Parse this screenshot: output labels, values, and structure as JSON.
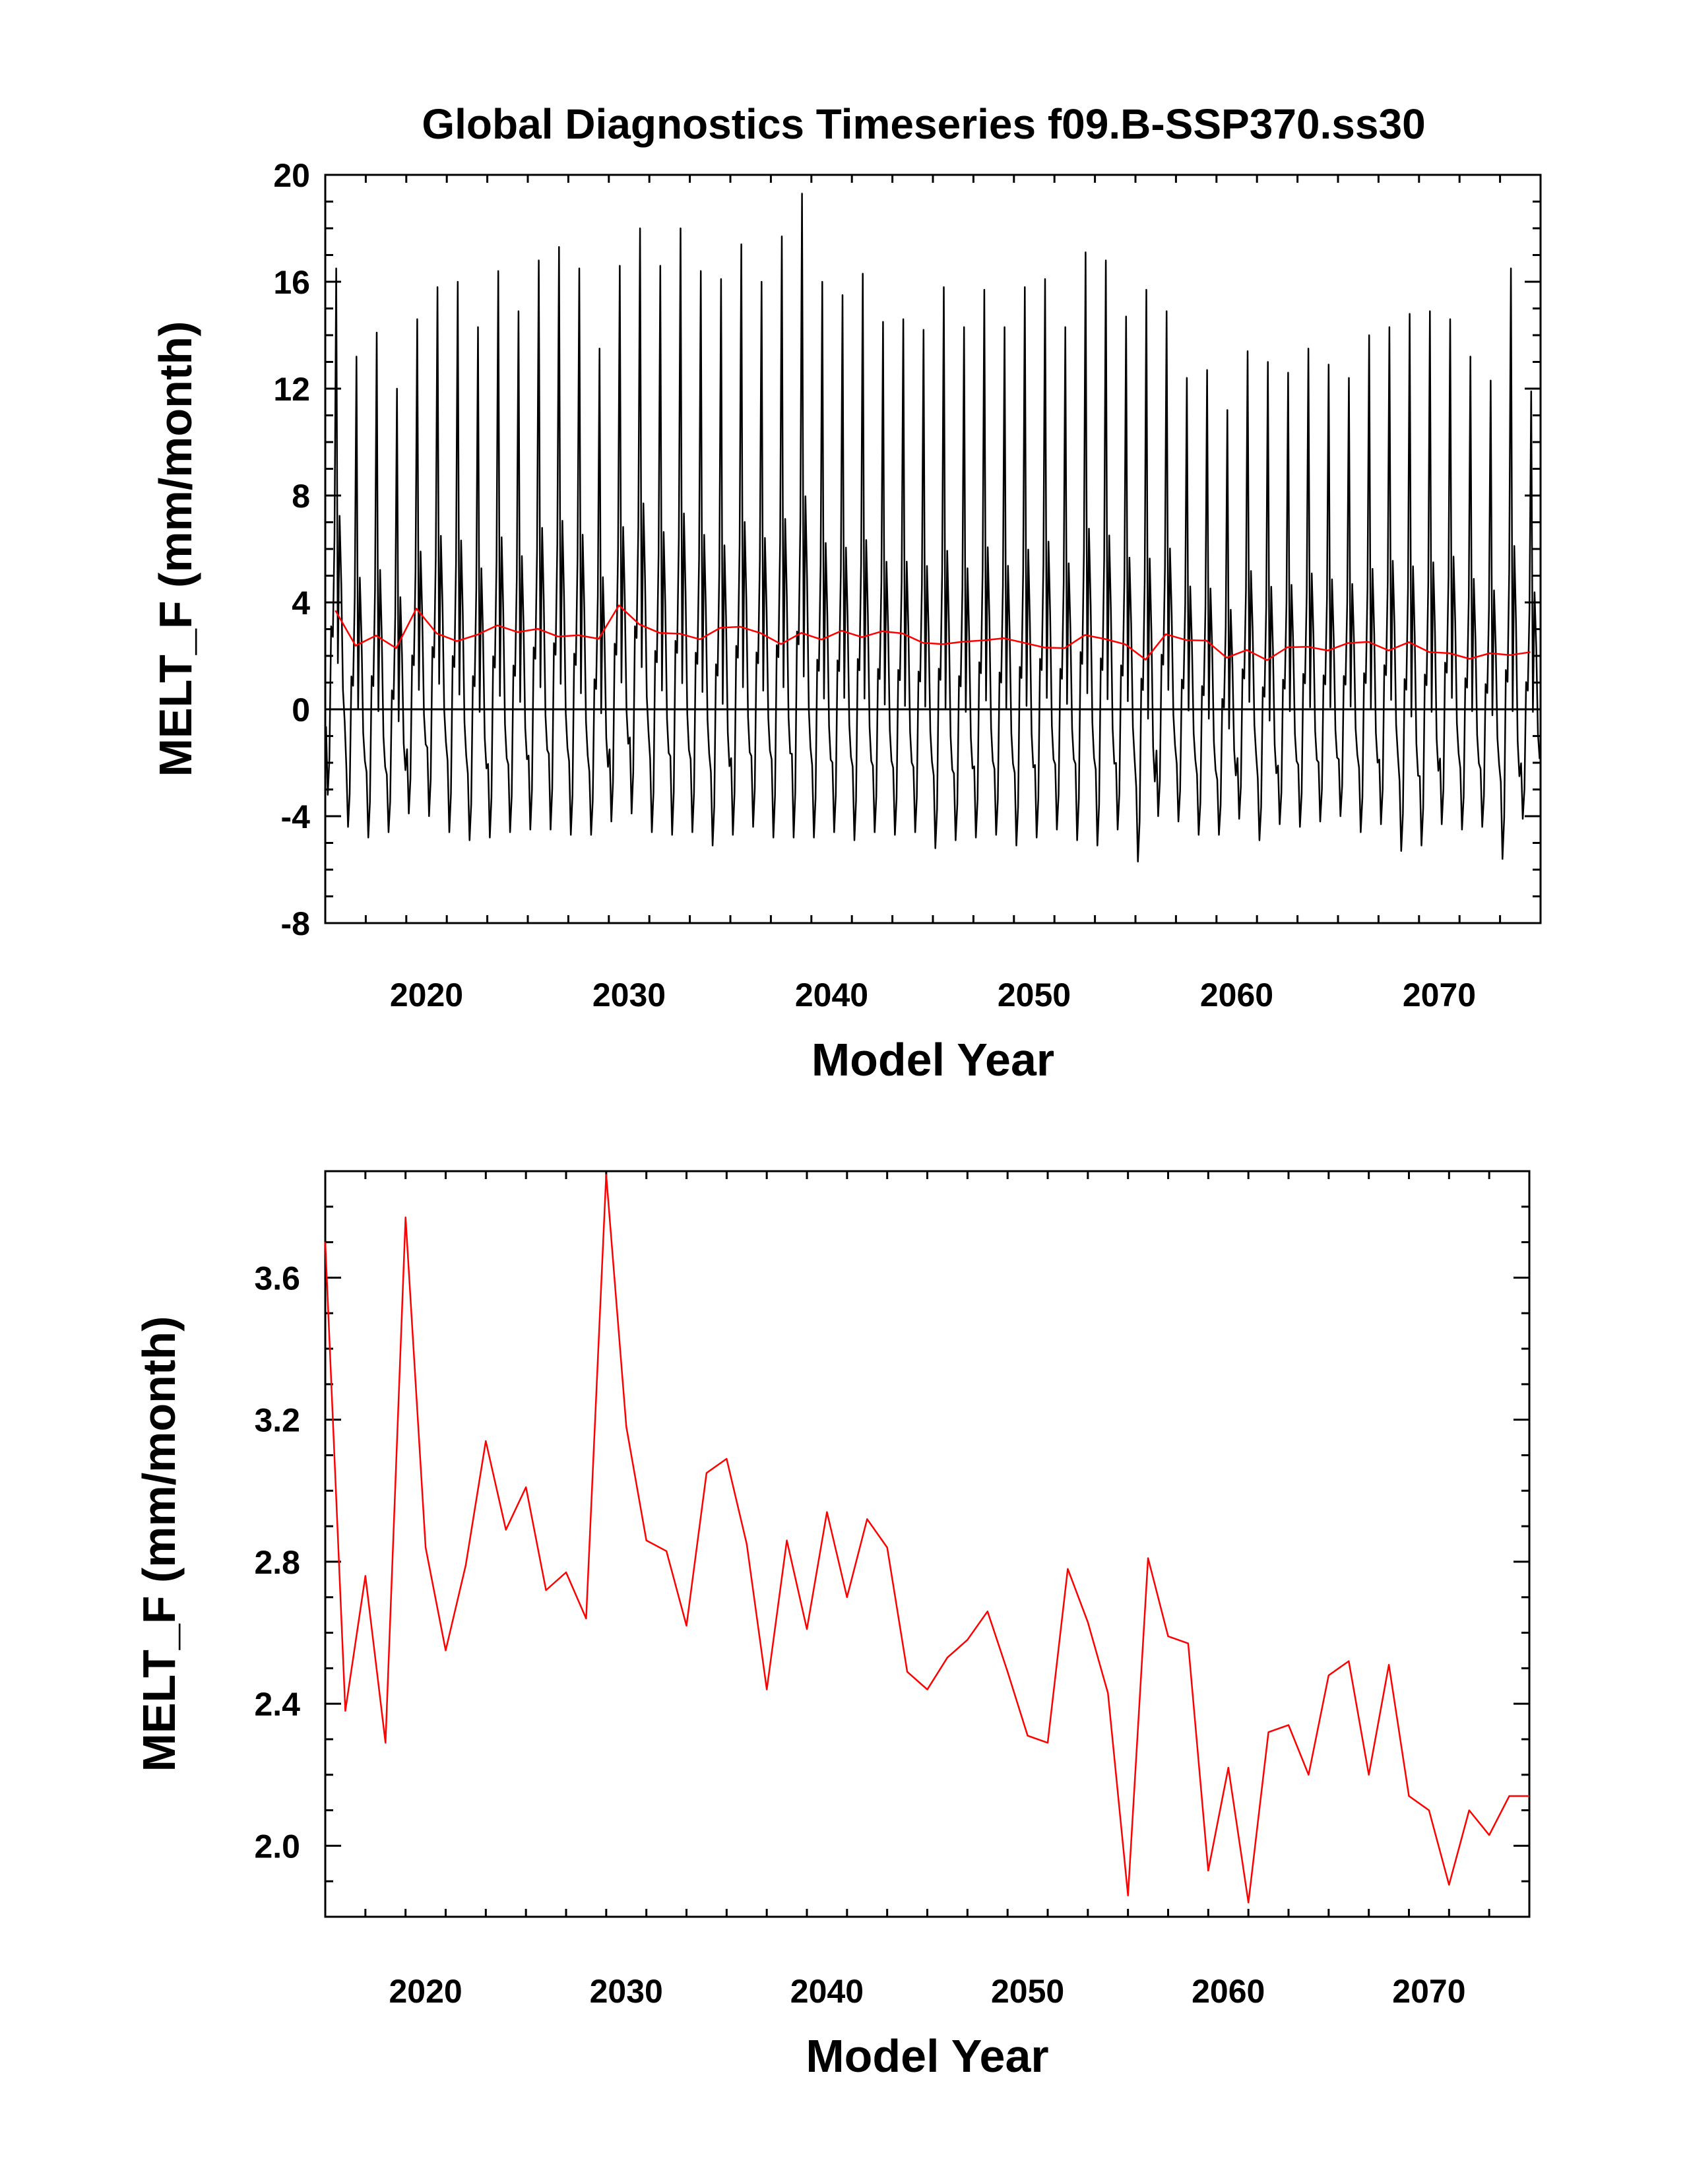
{
  "title": "Global Diagnostics Timeseries f09.B-SSP370.ss30",
  "chart_data": [
    {
      "type": "line",
      "panel": "monthly",
      "title": "Global Diagnostics Timeseries f09.B-SSP370.ss30",
      "xlabel": "Model Year",
      "ylabel": "MELT_F (mm/month)",
      "xlim": [
        2015,
        2075
      ],
      "ylim": [
        -8,
        20
      ],
      "xticks": [
        2020,
        2030,
        2040,
        2050,
        2060,
        2070
      ],
      "xtick_labels": [
        "2020",
        "2030",
        "2040",
        "2050",
        "2060",
        "2070"
      ],
      "yticks": [
        -8,
        -4,
        0,
        4,
        8,
        12,
        16,
        20
      ],
      "ytick_labels": [
        "-8",
        "-4",
        "0",
        "4",
        "8",
        "12",
        "16",
        "20"
      ],
      "zero_line": true,
      "grid": false,
      "series": [
        {
          "role": "monthly",
          "color": "#000000",
          "x_start": 2015.04,
          "x_step": 0.08333,
          "annual_peaks": [
            16.5,
            13.2,
            14.1,
            12.0,
            14.6,
            15.8,
            16.0,
            14.3,
            16.4,
            14.9,
            16.8,
            17.3,
            16.5,
            13.5,
            16.6,
            18.0,
            16.6,
            18.0,
            16.4,
            16.1,
            17.4,
            16.0,
            17.7,
            19.3,
            16.0,
            15.5,
            16.3,
            14.5,
            14.6,
            14.2,
            15.8,
            14.3,
            15.7,
            14.3,
            15.8,
            16.1,
            14.3,
            17.1,
            16.8,
            14.7,
            15.7,
            14.9,
            12.4,
            12.7,
            11.2,
            13.4,
            13.0,
            12.6,
            13.5,
            12.9,
            12.4,
            14.0,
            14.3,
            14.8,
            14.9,
            14.6,
            13.2,
            12.3,
            16.5,
            11.9
          ],
          "annual_minima": [
            -3.2,
            -4.4,
            -4.8,
            -4.6,
            -3.9,
            -4.0,
            -4.6,
            -4.9,
            -4.8,
            -4.6,
            -4.5,
            -4.5,
            -4.7,
            -4.7,
            -4.2,
            -3.9,
            -4.6,
            -4.7,
            -4.6,
            -5.1,
            -4.7,
            -4.4,
            -4.8,
            -4.8,
            -4.8,
            -4.6,
            -4.9,
            -4.6,
            -4.7,
            -4.6,
            -5.2,
            -4.9,
            -4.8,
            -4.7,
            -5.1,
            -4.8,
            -4.5,
            -4.9,
            -5.1,
            -4.5,
            -5.7,
            -4.0,
            -4.2,
            -4.7,
            -4.7,
            -4.1,
            -4.9,
            -4.3,
            -4.4,
            -4.2,
            -4.0,
            -4.6,
            -4.3,
            -5.3,
            -5.1,
            -4.3,
            -4.5,
            -4.4,
            -5.6,
            -4.1
          ]
        },
        {
          "role": "annual-mean",
          "color": "#ff0000",
          "x": [
            2015.5,
            2016.5,
            2017.5,
            2018.5,
            2019.5,
            2020.5,
            2021.5,
            2022.5,
            2023.5,
            2024.5,
            2025.5,
            2026.5,
            2027.5,
            2028.5,
            2029.5,
            2030.5,
            2031.5,
            2032.5,
            2033.5,
            2034.5,
            2035.5,
            2036.5,
            2037.5,
            2038.5,
            2039.5,
            2040.5,
            2041.5,
            2042.5,
            2043.5,
            2044.5,
            2045.5,
            2046.5,
            2047.5,
            2048.5,
            2049.5,
            2050.5,
            2051.5,
            2052.5,
            2053.5,
            2054.5,
            2055.5,
            2056.5,
            2057.5,
            2058.5,
            2059.5,
            2060.5,
            2061.5,
            2062.5,
            2063.5,
            2064.5,
            2065.5,
            2066.5,
            2067.5,
            2068.5,
            2069.5,
            2070.5,
            2071.5,
            2072.5,
            2073.5,
            2074.5
          ],
          "y": [
            3.7,
            2.38,
            2.76,
            2.29,
            3.77,
            2.84,
            2.55,
            2.79,
            3.14,
            2.89,
            3.01,
            2.72,
            2.77,
            2.64,
            3.89,
            3.18,
            2.86,
            2.83,
            2.62,
            3.05,
            3.09,
            2.85,
            2.44,
            2.86,
            2.61,
            2.94,
            2.7,
            2.92,
            2.84,
            2.49,
            2.44,
            2.53,
            2.58,
            2.66,
            2.49,
            2.31,
            2.29,
            2.78,
            2.63,
            2.43,
            1.86,
            2.81,
            2.59,
            2.57,
            1.93,
            2.22,
            1.84,
            2.32,
            2.34,
            2.2,
            2.48,
            2.52,
            2.2,
            2.51,
            2.14,
            2.1,
            1.89,
            2.1,
            2.03,
            2.14
          ]
        }
      ]
    },
    {
      "type": "line",
      "panel": "annual",
      "xlabel": "Model Year",
      "ylabel": "MELT_F (mm/month)",
      "xlim": [
        2015,
        2075
      ],
      "ylim": [
        1.8,
        3.9
      ],
      "xticks": [
        2020,
        2030,
        2040,
        2050,
        2060,
        2070
      ],
      "xtick_labels": [
        "2020",
        "2030",
        "2040",
        "2050",
        "2060",
        "2070"
      ],
      "yticks": [
        2.0,
        2.4,
        2.8,
        3.2,
        3.6
      ],
      "ytick_labels": [
        "2.0",
        "2.4",
        "2.8",
        "3.2",
        "3.6"
      ],
      "grid": false,
      "series": [
        {
          "role": "annual-mean",
          "color": "#ff0000",
          "x": [
            2015.0,
            2016.0,
            2017.0,
            2018.0,
            2019.0,
            2020.0,
            2021.0,
            2022.0,
            2023.0,
            2024.0,
            2025.0,
            2026.0,
            2027.0,
            2028.0,
            2029.0,
            2030.0,
            2031.0,
            2032.0,
            2033.0,
            2034.0,
            2035.0,
            2036.0,
            2037.0,
            2038.0,
            2039.0,
            2040.0,
            2041.0,
            2042.0,
            2043.0,
            2044.0,
            2045.0,
            2046.0,
            2047.0,
            2048.0,
            2049.0,
            2050.0,
            2051.0,
            2052.0,
            2053.0,
            2054.0,
            2055.0,
            2056.0,
            2057.0,
            2058.0,
            2059.0,
            2060.0,
            2061.0,
            2062.0,
            2063.0,
            2064.0,
            2065.0,
            2066.0,
            2067.0,
            2068.0,
            2069.0,
            2070.0,
            2071.0,
            2072.0,
            2073.0,
            2074.0,
            2075.0
          ],
          "y": [
            3.7,
            2.38,
            2.76,
            2.29,
            3.77,
            2.84,
            2.55,
            2.79,
            3.14,
            2.89,
            3.01,
            2.72,
            2.77,
            2.64,
            3.89,
            3.18,
            2.86,
            2.83,
            2.62,
            3.05,
            3.09,
            2.85,
            2.44,
            2.86,
            2.61,
            2.94,
            2.7,
            2.92,
            2.84,
            2.49,
            2.44,
            2.53,
            2.58,
            2.66,
            2.49,
            2.31,
            2.29,
            2.78,
            2.63,
            2.43,
            1.86,
            2.81,
            2.59,
            2.57,
            1.93,
            2.22,
            1.84,
            2.32,
            2.34,
            2.2,
            2.48,
            2.52,
            2.2,
            2.51,
            2.14,
            2.1,
            1.89,
            2.1,
            2.03,
            2.14,
            2.14
          ]
        }
      ]
    }
  ]
}
